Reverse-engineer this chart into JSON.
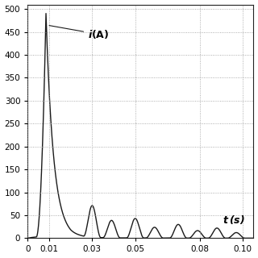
{
  "xlim": [
    0,
    0.105
  ],
  "ylim": [
    0,
    510
  ],
  "yticks": [
    0,
    50,
    100,
    150,
    200,
    250,
    300,
    350,
    400,
    450,
    500
  ],
  "xtick_positions": [
    0,
    0.01,
    0.03,
    0.05,
    0.08,
    0.1
  ],
  "xtick_labels": [
    "0",
    "0.01",
    "0.03",
    "0.05",
    "0.08",
    "0.10"
  ],
  "line_color": "#1a1a1a",
  "background_color": "#ffffff",
  "grid_color": "#999999",
  "peak1_t": 0.0085,
  "peak1_val": 490,
  "peak2_t": 0.03,
  "peak2_val": 70,
  "peak3_t": 0.05,
  "peak3_val": 43,
  "peak4_t": 0.07,
  "peak4_val": 30,
  "peak5_t": 0.088,
  "peak5_val": 22,
  "fs": 20000,
  "duration": 0.105
}
